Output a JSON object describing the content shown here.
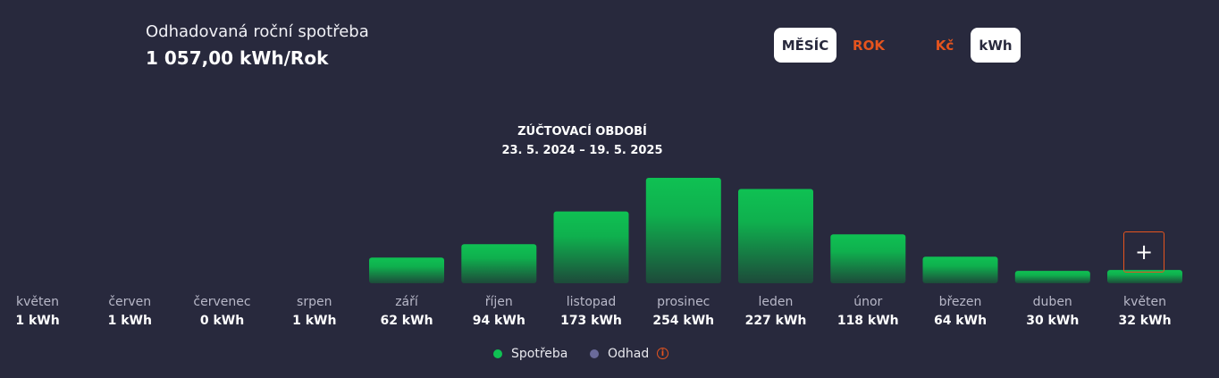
{
  "header": {
    "estimate_label": "Odhadovaná roční spotřeba",
    "estimate_value": "1 057,00 kWh/Rok"
  },
  "toggles": {
    "month": "MĚSÍC",
    "year": "ROK",
    "czk": "Kč",
    "kwh": "kWh"
  },
  "period": {
    "title": "ZÚČTOVACÍ OBDOBÍ",
    "range": "23. 5. 2024 – 19. 5. 2025"
  },
  "plus_button": "+",
  "legend": {
    "consumption": "Spotřeba",
    "estimate": "Odhad",
    "info_symbol": "i"
  },
  "colors": {
    "background": "#28293d",
    "bar_top": "#0fc153",
    "bar_bottom": "#1d4a3a",
    "accent": "#e5541e",
    "estimate_dot": "#6a6a9a"
  },
  "chart_data": {
    "type": "bar",
    "categories": [
      "květen",
      "červen",
      "červenec",
      "srpen",
      "září",
      "říjen",
      "listopad",
      "prosinec",
      "leden",
      "únor",
      "březen",
      "duben",
      "květen"
    ],
    "series": [
      {
        "name": "Spotřeba",
        "values": [
          1,
          1,
          0,
          1,
          62,
          94,
          173,
          254,
          227,
          118,
          64,
          30,
          32
        ]
      }
    ],
    "value_labels": [
      "1 kWh",
      "1 kWh",
      "0 kWh",
      "1 kWh",
      "62 kWh",
      "94 kWh",
      "173 kWh",
      "254 kWh",
      "227 kWh",
      "118 kWh",
      "64 kWh",
      "30 kWh",
      "32 kWh"
    ],
    "ylim": [
      0,
      254
    ],
    "grid": false,
    "legend_position": "bottom-center"
  }
}
